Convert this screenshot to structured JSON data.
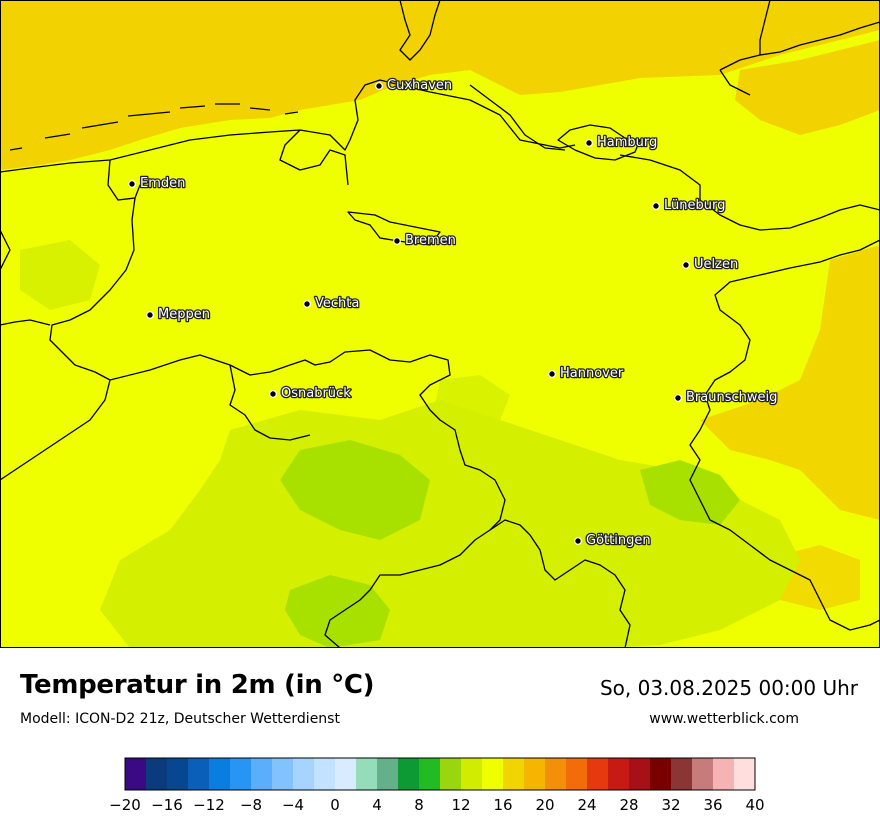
{
  "map": {
    "cities": [
      {
        "name": "Cuxhaven"
      },
      {
        "name": "Hamburg"
      },
      {
        "name": "Emden"
      },
      {
        "name": "Lüneburg"
      },
      {
        "name": "Bremen"
      },
      {
        "name": "Uelzen"
      },
      {
        "name": "Vechta"
      },
      {
        "name": "Meppen"
      },
      {
        "name": "Hannover"
      },
      {
        "name": "Osnabrück"
      },
      {
        "name": "Braunschweig"
      },
      {
        "name": "Göttingen"
      }
    ],
    "colors": {
      "sea_warm": "#f2d200",
      "land_main": "#f0ff00",
      "land_cool": "#d4f000",
      "land_cooler": "#a8e000",
      "boundary": "#000000"
    }
  },
  "footer": {
    "title": "Temperatur in 2m (in °C)",
    "model": "Modell: ICON-D2 21z, Deutscher Wetterdienst",
    "datetime": "So, 03.08.2025 00:00 Uhr",
    "website": "www.wetterblick.com"
  },
  "legend": {
    "tick_labels": [
      "−20",
      "−16",
      "−12",
      "−8",
      "−4",
      "0",
      "4",
      "8",
      "12",
      "16",
      "20",
      "24",
      "28",
      "32",
      "36",
      "40"
    ],
    "colors": [
      "#3a0a85",
      "#0b3a7d",
      "#07478f",
      "#0a5fb8",
      "#0a7de0",
      "#2894f4",
      "#5aaefc",
      "#82c2ff",
      "#a6d4ff",
      "#c3e2ff",
      "#d9ecff",
      "#95dcbb",
      "#63b08a",
      "#0d9a35",
      "#22bb22",
      "#9ad60e",
      "#d2ec00",
      "#f0ff00",
      "#f1d400",
      "#f4b600",
      "#f39009",
      "#f26c0a",
      "#e63a0e",
      "#c81a15",
      "#a81018",
      "#7a0000",
      "#8c3535",
      "#c87b7b",
      "#f4b4b4",
      "#ffdede"
    ]
  }
}
